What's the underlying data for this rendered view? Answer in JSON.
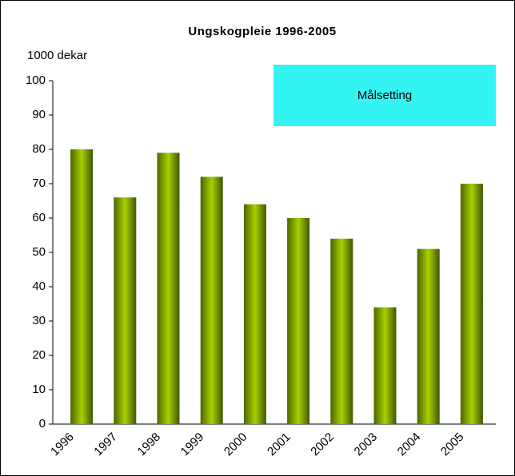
{
  "chart_data": {
    "type": "bar",
    "title": "Ungskogpleie 1996-2005",
    "y_label": "1000 dekar",
    "annotation": "Målsetting",
    "annotation_color": "#33f3f3",
    "categories": [
      "1996",
      "1997",
      "1998",
      "1999",
      "2000",
      "2001",
      "2002",
      "2003",
      "2004",
      "2005"
    ],
    "values": [
      80,
      66,
      79,
      72,
      64,
      60,
      54,
      34,
      51,
      70
    ],
    "color": "#a8d000",
    "ylim": [
      0,
      100
    ],
    "yticks": [
      0,
      10,
      20,
      30,
      40,
      50,
      60,
      70,
      80,
      90,
      100
    ],
    "grid": false
  }
}
